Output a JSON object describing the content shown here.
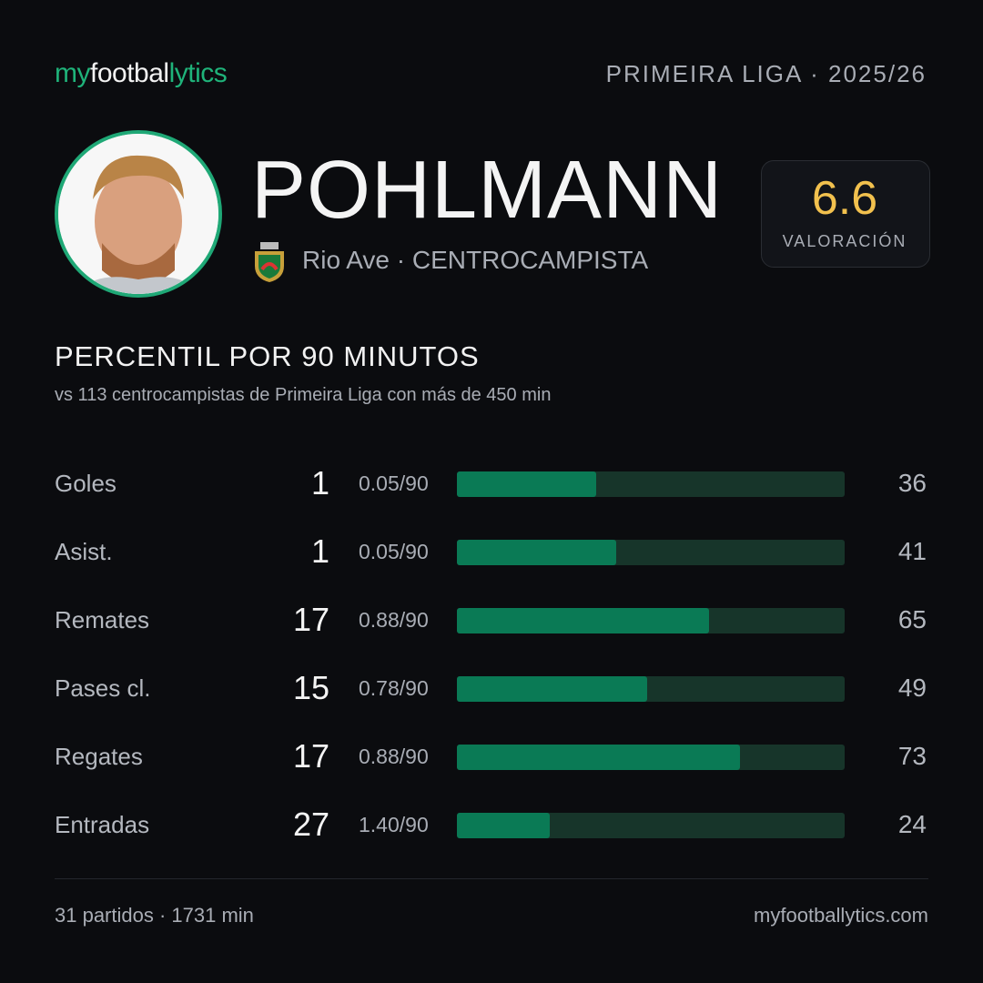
{
  "header": {
    "logo": [
      "my",
      "footbal",
      "lytics"
    ],
    "competition": "PRIMEIRA LIGA · 2025/26"
  },
  "player": {
    "name": "POHLMANN",
    "team_line": "Rio Ave · CENTROCAMPISTA",
    "rating": 6.6,
    "rating_label": "VALORACIÓN"
  },
  "section": {
    "title": "PERCENTIL POR 90 MINUTOS",
    "subtitle": "vs 113 centrocampistas de Primeira Liga con más de 450 min"
  },
  "stats": {
    "xlim": [
      0,
      100
    ],
    "rows": [
      {
        "label": "Goles",
        "total": 1,
        "per90": "0.05/90",
        "percentile": 36
      },
      {
        "label": "Asist.",
        "total": 1,
        "per90": "0.05/90",
        "percentile": 41
      },
      {
        "label": "Remates",
        "total": 17,
        "per90": "0.88/90",
        "percentile": 65
      },
      {
        "label": "Pases cl.",
        "total": 15,
        "per90": "0.78/90",
        "percentile": 49
      },
      {
        "label": "Regates",
        "total": 17,
        "per90": "0.88/90",
        "percentile": 73
      },
      {
        "label": "Entradas",
        "total": 27,
        "per90": "1.40/90",
        "percentile": 24
      }
    ]
  },
  "footer": {
    "left": "31 partidos · 1731 min",
    "right": "myfootballytics.com"
  }
}
